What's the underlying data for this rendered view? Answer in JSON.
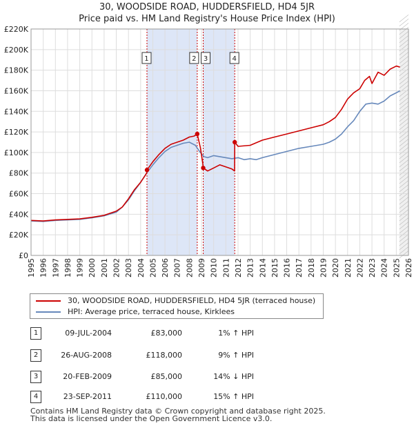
{
  "title_line1": "30, WOODSIDE ROAD, HUDDERSFIELD, HD4 5JR",
  "title_line2": "Price paid vs. HM Land Registry's House Price Index (HPI)",
  "legend": {
    "property_label": "30, WOODSIDE ROAD, HUDDERSFIELD, HD4 5JR (terraced house)",
    "hpi_label": "HPI: Average price, terraced house, Kirklees"
  },
  "colors": {
    "property": "#cc0000",
    "hpi": "#6688bb",
    "highlight": "#dde6f7",
    "grid": "#dddddd"
  },
  "sales": [
    {
      "num": "1",
      "date": "09-JUL-2004",
      "price": "£83,000",
      "hpi": "1% ↑ HPI"
    },
    {
      "num": "2",
      "date": "26-AUG-2008",
      "price": "£118,000",
      "hpi": "9% ↑ HPI"
    },
    {
      "num": "3",
      "date": "20-FEB-2009",
      "price": "£85,000",
      "hpi": "14% ↓ HPI"
    },
    {
      "num": "4",
      "date": "23-SEP-2011",
      "price": "£110,000",
      "hpi": "15% ↑ HPI"
    }
  ],
  "footer_line1": "Contains HM Land Registry data © Crown copyright and database right 2025.",
  "footer_line2": "This data is licensed under the Open Government Licence v3.0.",
  "chart_data": {
    "type": "line",
    "title": "30, WOODSIDE ROAD, HUDDERSFIELD, HD4 5JR — Price paid vs. HM Land Registry's House Price Index (HPI)",
    "xlim": [
      1995,
      2026
    ],
    "ylim": [
      0,
      220000
    ],
    "y_ticks": [
      0,
      20000,
      40000,
      60000,
      80000,
      100000,
      120000,
      140000,
      160000,
      180000,
      200000,
      220000
    ],
    "y_tick_labels": [
      "£0",
      "£20K",
      "£40K",
      "£60K",
      "£80K",
      "£100K",
      "£120K",
      "£140K",
      "£160K",
      "£180K",
      "£200K",
      "£220K"
    ],
    "x_ticks": [
      1995,
      1996,
      1997,
      1998,
      1999,
      2000,
      2001,
      2002,
      2003,
      2004,
      2005,
      2006,
      2007,
      2008,
      2009,
      2010,
      2011,
      2012,
      2013,
      2014,
      2015,
      2016,
      2017,
      2018,
      2019,
      2020,
      2021,
      2022,
      2023,
      2024,
      2025,
      2026
    ],
    "x_tick_labels": [
      "1995",
      "1996",
      "1997",
      "1998",
      "1999",
      "2000",
      "2001",
      "2002",
      "2003",
      "2004",
      "2005",
      "2006",
      "2007",
      "2008",
      "2009",
      "2010",
      "2011",
      "2012",
      "2013",
      "2014",
      "2015",
      "2016",
      "2017",
      "2018",
      "2019",
      "2020",
      "2021",
      "2022",
      "2023",
      "2024",
      "2025",
      "2026"
    ],
    "highlight_ranges": [
      [
        2004.52,
        2008.65
      ],
      [
        2009.14,
        2011.73
      ]
    ],
    "forecast_start": 2025.25,
    "sale_markers": [
      {
        "label": "1",
        "x": 2004.52,
        "y": 83000
      },
      {
        "label": "2",
        "x": 2008.65,
        "y": 118000
      },
      {
        "label": "3",
        "x": 2009.14,
        "y": 85000
      },
      {
        "label": "4",
        "x": 2011.73,
        "y": 110000
      }
    ],
    "series": [
      {
        "name": "30, WOODSIDE ROAD, HUDDERSFIELD, HD4 5JR (terraced house)",
        "x": [
          1995,
          1996,
          1997,
          1998,
          1999,
          2000,
          2001,
          2002,
          2002.5,
          2003,
          2003.5,
          2004,
          2004.5,
          2004.52,
          2005,
          2005.5,
          2006,
          2006.5,
          2007,
          2007.5,
          2008,
          2008.4,
          2008.65,
          2008.9,
          2009.1,
          2009.14,
          2009.5,
          2010,
          2010.5,
          2011,
          2011.5,
          2011.72,
          2011.73,
          2012,
          2013,
          2014,
          2015,
          2016,
          2017,
          2018,
          2019,
          2019.5,
          2020,
          2020.5,
          2021,
          2021.5,
          2022,
          2022.4,
          2022.8,
          2023,
          2023.5,
          2024,
          2024.5,
          2025,
          2025.3
        ],
        "values": [
          34000,
          33500,
          34500,
          35000,
          35500,
          37000,
          39000,
          43000,
          47000,
          55000,
          64000,
          71000,
          80000,
          83000,
          91000,
          98000,
          104000,
          108000,
          110000,
          112000,
          115000,
          116000,
          118000,
          105000,
          90000,
          85000,
          82000,
          85000,
          88000,
          86000,
          84000,
          82000,
          110000,
          106000,
          107000,
          112000,
          115000,
          118000,
          121000,
          124000,
          127000,
          130000,
          134000,
          142000,
          152000,
          158000,
          162000,
          170000,
          174000,
          167000,
          178000,
          175000,
          181000,
          184000,
          183000
        ]
      },
      {
        "name": "HPI: Average price, terraced house, Kirklees",
        "x": [
          1995,
          1996,
          1997,
          1998,
          1999,
          2000,
          2001,
          2002,
          2002.5,
          2003,
          2003.5,
          2004,
          2004.5,
          2005,
          2005.5,
          2006,
          2006.5,
          2007,
          2007.5,
          2008,
          2008.5,
          2008.9,
          2009.2,
          2009.5,
          2010,
          2010.5,
          2011,
          2011.5,
          2012,
          2012.5,
          2013,
          2013.5,
          2014,
          2015,
          2016,
          2017,
          2018,
          2019,
          2019.5,
          2020,
          2020.5,
          2021,
          2021.5,
          2022,
          2022.5,
          2023,
          2023.5,
          2024,
          2024.5,
          2025,
          2025.3
        ],
        "values": [
          33500,
          33000,
          34000,
          34500,
          35000,
          36500,
          38500,
          42000,
          47000,
          54000,
          63000,
          71000,
          80000,
          88000,
          95000,
          101000,
          105000,
          107000,
          109000,
          110000,
          107000,
          100000,
          96000,
          95000,
          97000,
          96000,
          95000,
          94000,
          95000,
          93000,
          94000,
          93000,
          95000,
          98000,
          101000,
          104000,
          106000,
          108000,
          110000,
          113000,
          118000,
          125000,
          131000,
          140000,
          147000,
          148000,
          147000,
          150000,
          155000,
          158000,
          160000
        ]
      }
    ]
  }
}
